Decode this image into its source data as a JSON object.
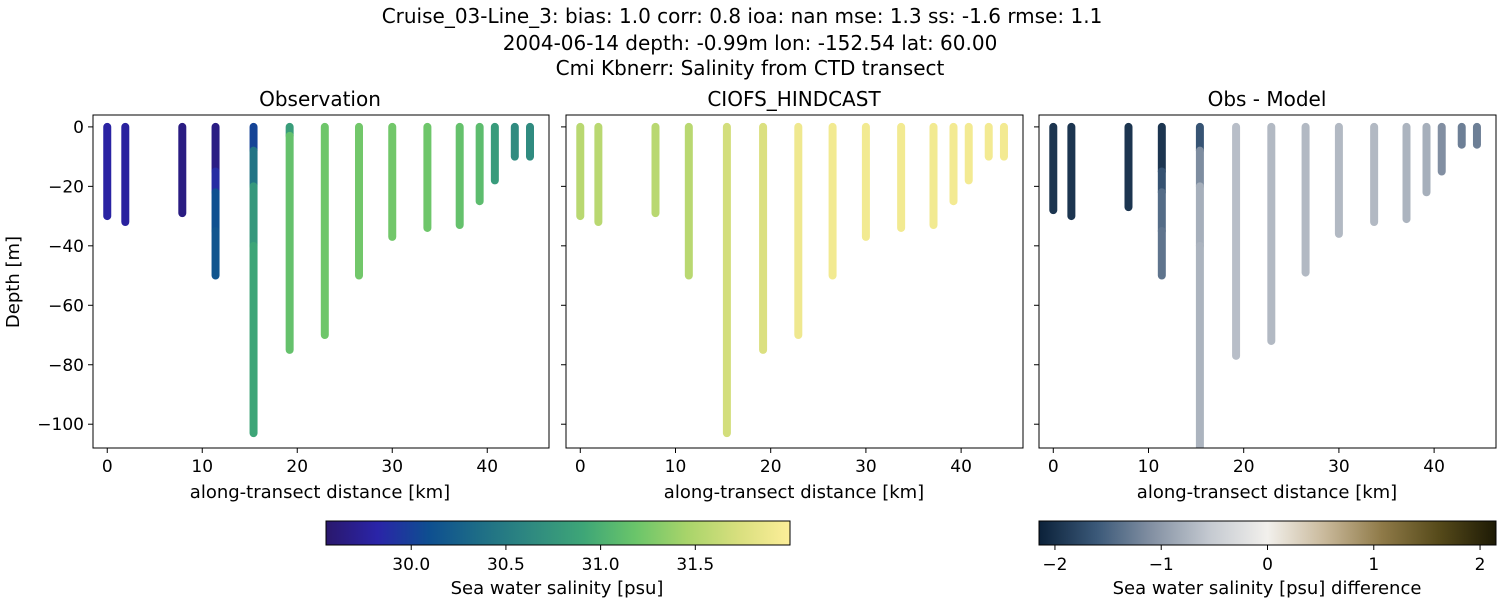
{
  "header": {
    "line1": "Cruise_03-Line_3: bias: 1.0  corr: 0.8  ioa: nan  mse: 1.3  ss: -1.6  rmse: 1.1",
    "line2": "2004-06-14 depth: -0.99m lon: -152.54 lat: 60.00",
    "line3": "Cmi Kbnerr: Salinity from CTD transect"
  },
  "colorbars": {
    "salinity": {
      "label": "Sea water salinity [psu]",
      "range": [
        29.55,
        32.0
      ],
      "ticks": [
        "30.0",
        "30.5",
        "31.0",
        "31.5"
      ],
      "tick_values": [
        30.0,
        30.5,
        31.0,
        31.5
      ],
      "colormap": "haline",
      "stops": [
        "#2a186c",
        "#2a24a8",
        "#0e4f90",
        "#1e6e86",
        "#2f8a80",
        "#3ea677",
        "#6ac56a",
        "#a8d46a",
        "#d8df7e",
        "#fdee99"
      ]
    },
    "difference": {
      "label": "Sea water salinity [psu] difference",
      "range": [
        -2.15,
        2.15
      ],
      "ticks": [
        "−2",
        "−1",
        "0",
        "1",
        "2"
      ],
      "tick_values": [
        -2,
        -1,
        0,
        1,
        2
      ],
      "colormap": "diff",
      "stops": [
        "#0b2139",
        "#3a5878",
        "#8592a4",
        "#c5cad1",
        "#f2f0ec",
        "#c9b99b",
        "#8f7a48",
        "#564a1a",
        "#1d1a05"
      ]
    }
  },
  "chart_data": [
    {
      "type": "scatter",
      "title": "Observation",
      "xlabel": "along-transect distance [km]",
      "ylabel": "Depth [m]",
      "xlim": [
        -1.5,
        46.5
      ],
      "ylim": [
        -108,
        4
      ],
      "xticks": [
        "0",
        "10",
        "20",
        "30",
        "40"
      ],
      "xtick_values": [
        0,
        10,
        20,
        30,
        40
      ],
      "yticks": [
        "0",
        "−20",
        "−40",
        "−60",
        "−80",
        "−100"
      ],
      "ytick_values": [
        0,
        -20,
        -40,
        -60,
        -80,
        -100
      ],
      "colorbar": "salinity",
      "profiles": [
        {
          "x": 0.0,
          "depth": -30,
          "segments": [
            [
              0,
              29.8
            ]
          ]
        },
        {
          "x": 1.9,
          "depth": -32,
          "segments": [
            [
              0,
              29.78
            ]
          ]
        },
        {
          "x": 7.9,
          "depth": -29,
          "segments": [
            [
              0,
              29.65
            ]
          ]
        },
        {
          "x": 11.4,
          "depth": -50,
          "segments": [
            [
              0,
              29.62
            ],
            [
              -15,
              29.7
            ],
            [
              -22,
              30.05
            ],
            [
              -35,
              30.15
            ]
          ]
        },
        {
          "x": 15.4,
          "depth": -103,
          "segments": [
            [
              0,
              29.85
            ],
            [
              -8,
              30.2
            ],
            [
              -20,
              30.65
            ],
            [
              -40,
              30.9
            ]
          ]
        },
        {
          "x": 19.2,
          "depth": -75,
          "segments": [
            [
              0,
              30.5
            ],
            [
              -3,
              31.15
            ]
          ]
        },
        {
          "x": 22.9,
          "depth": -70,
          "segments": [
            [
              0,
              31.2
            ]
          ]
        },
        {
          "x": 26.5,
          "depth": -50,
          "segments": [
            [
              0,
              31.22
            ]
          ]
        },
        {
          "x": 30.0,
          "depth": -37,
          "segments": [
            [
              0,
              31.22
            ]
          ]
        },
        {
          "x": 33.7,
          "depth": -34,
          "segments": [
            [
              0,
              31.2
            ]
          ]
        },
        {
          "x": 37.1,
          "depth": -33,
          "segments": [
            [
              0,
              31.15
            ]
          ]
        },
        {
          "x": 39.2,
          "depth": -25,
          "segments": [
            [
              0,
              31.1
            ]
          ]
        },
        {
          "x": 40.8,
          "depth": -18,
          "segments": [
            [
              0,
              30.8
            ]
          ]
        },
        {
          "x": 42.9,
          "depth": -10,
          "segments": [
            [
              0,
              30.65
            ]
          ]
        },
        {
          "x": 44.5,
          "depth": -10,
          "segments": [
            [
              0,
              30.65
            ]
          ]
        }
      ]
    },
    {
      "type": "scatter",
      "title": "CIOFS_HINDCAST",
      "xlabel": "along-transect distance [km]",
      "ylabel": "",
      "xlim": [
        -1.5,
        46.5
      ],
      "ylim": [
        -108,
        4
      ],
      "xticks": [
        "0",
        "10",
        "20",
        "30",
        "40"
      ],
      "xtick_values": [
        0,
        10,
        20,
        30,
        40
      ],
      "yticks": [],
      "ytick_values": [
        0,
        -20,
        -40,
        -60,
        -80,
        -100
      ],
      "colorbar": "salinity",
      "profiles": [
        {
          "x": 0.0,
          "depth": -30,
          "segments": [
            [
              0,
              31.55
            ]
          ]
        },
        {
          "x": 1.9,
          "depth": -32,
          "segments": [
            [
              0,
              31.55
            ]
          ]
        },
        {
          "x": 7.9,
          "depth": -29,
          "segments": [
            [
              0,
              31.55
            ]
          ]
        },
        {
          "x": 11.4,
          "depth": -50,
          "segments": [
            [
              0,
              31.55
            ]
          ]
        },
        {
          "x": 15.4,
          "depth": -103,
          "segments": [
            [
              0,
              31.7
            ]
          ]
        },
        {
          "x": 19.2,
          "depth": -75,
          "segments": [
            [
              0,
              31.75
            ]
          ]
        },
        {
          "x": 22.9,
          "depth": -70,
          "segments": [
            [
              0,
              31.9
            ]
          ]
        },
        {
          "x": 26.5,
          "depth": -50,
          "segments": [
            [
              0,
              31.92
            ]
          ]
        },
        {
          "x": 30.0,
          "depth": -37,
          "segments": [
            [
              0,
              31.92
            ]
          ]
        },
        {
          "x": 33.7,
          "depth": -34,
          "segments": [
            [
              0,
              31.92
            ]
          ]
        },
        {
          "x": 37.1,
          "depth": -33,
          "segments": [
            [
              0,
              31.92
            ]
          ]
        },
        {
          "x": 39.2,
          "depth": -25,
          "segments": [
            [
              0,
              31.93
            ]
          ]
        },
        {
          "x": 40.8,
          "depth": -18,
          "segments": [
            [
              0,
              31.93
            ]
          ]
        },
        {
          "x": 42.9,
          "depth": -10,
          "segments": [
            [
              0,
              31.93
            ]
          ]
        },
        {
          "x": 44.5,
          "depth": -10,
          "segments": [
            [
              0,
              31.93
            ]
          ]
        }
      ]
    },
    {
      "type": "scatter",
      "title": "Obs - Model",
      "xlabel": "along-transect distance [km]",
      "ylabel": "",
      "xlim": [
        -1.5,
        46.5
      ],
      "ylim": [
        -108,
        4
      ],
      "xticks": [
        "0",
        "10",
        "20",
        "30",
        "40"
      ],
      "xtick_values": [
        0,
        10,
        20,
        30,
        40
      ],
      "yticks": [],
      "ytick_values": [
        0,
        -20,
        -40,
        -60,
        -80,
        -100
      ],
      "colorbar": "difference",
      "profiles": [
        {
          "x": 0.0,
          "depth": -28,
          "segments": [
            [
              0,
              -1.95
            ]
          ]
        },
        {
          "x": 1.9,
          "depth": -30,
          "segments": [
            [
              0,
              -1.95
            ]
          ]
        },
        {
          "x": 7.9,
          "depth": -27,
          "segments": [
            [
              0,
              -1.95
            ]
          ]
        },
        {
          "x": 11.4,
          "depth": -50,
          "segments": [
            [
              0,
              -2.05
            ],
            [
              -15,
              -1.85
            ],
            [
              -22,
              -1.5
            ],
            [
              -35,
              -1.35
            ]
          ]
        },
        {
          "x": 15.4,
          "depth": -108,
          "segments": [
            [
              0,
              -1.9
            ],
            [
              -8,
              -1.4
            ],
            [
              -20,
              -0.85
            ],
            [
              -40,
              -0.75
            ]
          ]
        },
        {
          "x": 19.2,
          "depth": -77,
          "segments": [
            [
              0,
              -0.65
            ]
          ]
        },
        {
          "x": 22.9,
          "depth": -72,
          "segments": [
            [
              0,
              -0.7
            ]
          ]
        },
        {
          "x": 26.5,
          "depth": -49,
          "segments": [
            [
              0,
              -0.7
            ]
          ]
        },
        {
          "x": 30.0,
          "depth": -36,
          "segments": [
            [
              0,
              -0.7
            ]
          ]
        },
        {
          "x": 33.7,
          "depth": -32,
          "segments": [
            [
              0,
              -0.7
            ]
          ]
        },
        {
          "x": 37.1,
          "depth": -31,
          "segments": [
            [
              0,
              -0.75
            ]
          ]
        },
        {
          "x": 39.2,
          "depth": -22,
          "segments": [
            [
              0,
              -0.8
            ]
          ]
        },
        {
          "x": 40.8,
          "depth": -15,
          "segments": [
            [
              0,
              -1.1
            ]
          ]
        },
        {
          "x": 42.9,
          "depth": -6,
          "segments": [
            [
              0,
              -1.25
            ]
          ]
        },
        {
          "x": 44.5,
          "depth": -6,
          "segments": [
            [
              0,
              -1.25
            ]
          ]
        }
      ]
    }
  ]
}
